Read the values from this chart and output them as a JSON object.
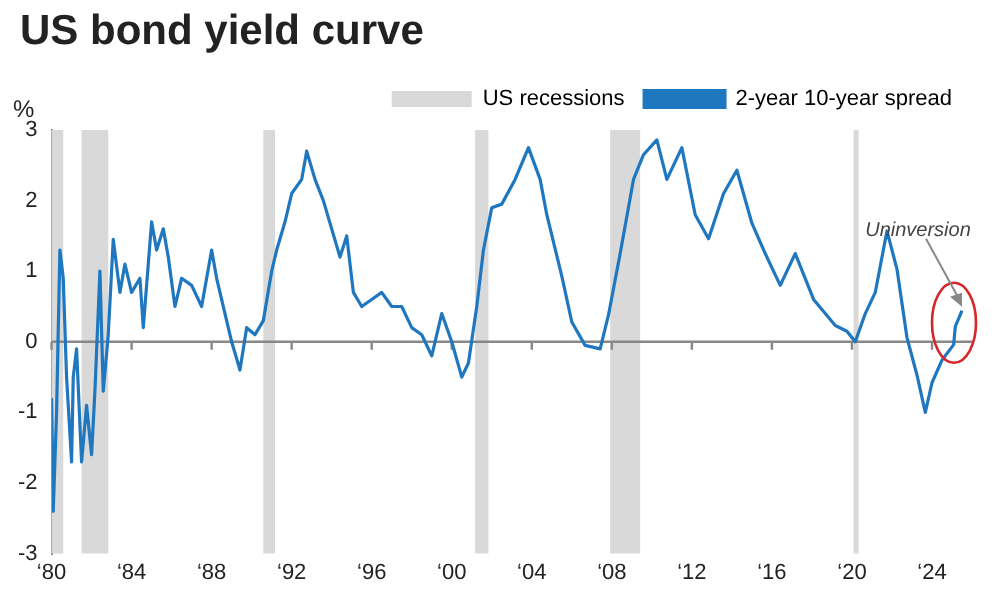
{
  "chart_data": {
    "type": "line",
    "title": "US bond yield curve",
    "ylabel": "%",
    "xlim": [
      "1980-01",
      "2026-01"
    ],
    "xticks": [
      {
        "value": "1980",
        "label": "‘80"
      },
      {
        "value": "1984",
        "label": "‘84"
      },
      {
        "value": "1988",
        "label": "‘88"
      },
      {
        "value": "1992",
        "label": "‘92"
      },
      {
        "value": "1996",
        "label": "‘96"
      },
      {
        "value": "2000",
        "label": "‘00"
      },
      {
        "value": "2004",
        "label": "‘04"
      },
      {
        "value": "2008",
        "label": "‘08"
      },
      {
        "value": "2012",
        "label": "‘12"
      },
      {
        "value": "2016",
        "label": "‘16"
      },
      {
        "value": "2020",
        "label": "‘20"
      },
      {
        "value": "2024",
        "label": "‘24"
      }
    ],
    "ylim": [
      -3,
      3
    ],
    "yticks": [
      -3,
      -2,
      -1,
      0,
      1,
      2,
      3
    ],
    "x": [
      "1980-01",
      "1980-02",
      "1980-04",
      "1980-06",
      "1980-08",
      "1980-10",
      "1981-01",
      "1981-02",
      "1981-04",
      "1981-07",
      "1981-10",
      "1982-01",
      "1982-03",
      "1982-06",
      "1982-08",
      "1982-11",
      "1983-02",
      "1983-06",
      "1983-09",
      "1984-01",
      "1984-06",
      "1984-08",
      "1985-01",
      "1985-04",
      "1985-08",
      "1985-11",
      "1986-03",
      "1986-07",
      "1987-01",
      "1987-07",
      "1988-01",
      "1988-04",
      "1988-09",
      "1989-01",
      "1989-06",
      "1989-10",
      "1990-03",
      "1990-08",
      "1991-01",
      "1991-04",
      "1991-09",
      "1992-01",
      "1992-07",
      "1992-10",
      "1993-03",
      "1993-08",
      "1994-01",
      "1994-06",
      "1994-10",
      "1995-02",
      "1995-07",
      "1996-01",
      "1996-07",
      "1997-01",
      "1997-07",
      "1998-01",
      "1998-07",
      "1999-01",
      "1999-07",
      "2000-01",
      "2000-07",
      "2000-11",
      "2001-04",
      "2001-08",
      "2002-01",
      "2002-07",
      "2003-03",
      "2003-11",
      "2004-06",
      "2004-10",
      "2005-07",
      "2006-01",
      "2006-09",
      "2007-06",
      "2007-11",
      "2008-06",
      "2009-02",
      "2009-08",
      "2010-04",
      "2010-10",
      "2011-07",
      "2012-03",
      "2012-11",
      "2013-08",
      "2014-04",
      "2015-01",
      "2015-09",
      "2016-06",
      "2017-03",
      "2018-02",
      "2019-03",
      "2019-10",
      "2020-03",
      "2020-09",
      "2021-03",
      "2021-10",
      "2022-04",
      "2022-10",
      "2023-04",
      "2023-09",
      "2024-01",
      "2024-07",
      "2025-02",
      "2025-03",
      "2025-07"
    ],
    "series": [
      {
        "name": "2-year 10-year spread",
        "color": "#1f77c0",
        "values": [
          -0.8,
          -2.4,
          -1.0,
          1.3,
          0.9,
          -0.5,
          -1.7,
          -0.5,
          -0.1,
          -1.7,
          -0.9,
          -1.6,
          -0.7,
          1.0,
          -0.7,
          0.1,
          1.45,
          0.7,
          1.1,
          0.7,
          0.9,
          0.2,
          1.7,
          1.3,
          1.6,
          1.2,
          0.5,
          0.9,
          0.8,
          0.5,
          1.3,
          0.9,
          0.4,
          0.0,
          -0.4,
          0.2,
          0.1,
          0.3,
          1.0,
          1.3,
          1.7,
          2.1,
          2.3,
          2.7,
          2.3,
          2.0,
          1.6,
          1.2,
          1.5,
          0.7,
          0.5,
          0.6,
          0.7,
          0.5,
          0.5,
          0.2,
          0.1,
          -0.2,
          0.4,
          0.0,
          -0.5,
          -0.3,
          0.5,
          1.3,
          1.9,
          1.95,
          2.3,
          2.75,
          2.3,
          1.8,
          0.93,
          0.28,
          -0.05,
          -0.1,
          0.38,
          1.25,
          2.3,
          2.65,
          2.86,
          2.3,
          2.75,
          1.8,
          1.46,
          2.1,
          2.43,
          1.68,
          1.25,
          0.8,
          1.25,
          0.6,
          0.23,
          0.15,
          0.0,
          0.4,
          0.7,
          1.57,
          1.03,
          0.06,
          -0.47,
          -1.0,
          -0.58,
          -0.26,
          -0.04,
          0.22,
          0.44
        ]
      }
    ],
    "bands": [
      {
        "axis": "x",
        "from": "1980-01",
        "to": "1980-08",
        "label": "US recessions",
        "color": "#d9d9d9"
      },
      {
        "axis": "x",
        "from": "1981-07",
        "to": "1982-11",
        "color": "#d9d9d9"
      },
      {
        "axis": "x",
        "from": "1990-08",
        "to": "1991-03",
        "color": "#d9d9d9"
      },
      {
        "axis": "x",
        "from": "2001-03",
        "to": "2001-11",
        "color": "#d9d9d9"
      },
      {
        "axis": "x",
        "from": "2007-12",
        "to": "2009-06",
        "color": "#d9d9d9"
      },
      {
        "axis": "x",
        "from": "2020-02",
        "to": "2020-05",
        "color": "#d9d9d9"
      }
    ],
    "ref_lines": [
      {
        "axis": "y",
        "value": 0,
        "color": "#888888"
      }
    ],
    "annotations": [
      {
        "text": "Uninversion",
        "x": "2025-07",
        "y": 0.44
      }
    ],
    "legend": "top right",
    "grid": false,
    "marker": "none",
    "line_style": "solid"
  }
}
